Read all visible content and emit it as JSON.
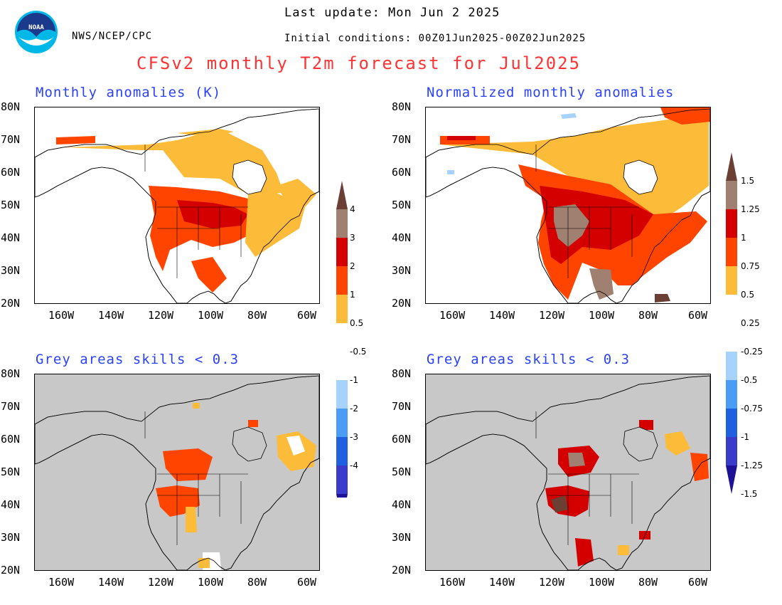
{
  "header": {
    "last_update": "Last update: Mon Jun 2 2025",
    "agency": "NWS/NCEP/CPC",
    "initial_conditions": "Initial conditions: 00Z01Jun2025-00Z02Jun2025",
    "main_title": "CFSv2 monthly T2m forecast for Jul2025",
    "logo_text": "NOAA"
  },
  "panels": {
    "top_left": {
      "title": "Monthly anomalies (K)"
    },
    "top_right": {
      "title": "Normalized monthly anomalies"
    },
    "bottom_left": {
      "title": "Grey areas skills < 0.3"
    },
    "bottom_right": {
      "title": "Grey areas skills < 0.3"
    }
  },
  "axes": {
    "lat_ticks": [
      "80N",
      "70N",
      "60N",
      "50N",
      "40N",
      "30N",
      "20N"
    ],
    "lon_ticks": [
      "160W",
      "140W",
      "120W",
      "100W",
      "80W",
      "60W"
    ]
  },
  "colorbars": {
    "anomaly_labels": [
      "4",
      "3",
      "2",
      "1",
      "0.5",
      "-0.5",
      "-1",
      "-2",
      "-3",
      "-4"
    ],
    "normalized_labels": [
      "1.5",
      "1.25",
      "1",
      "0.75",
      "0.5",
      "0.25",
      "-0.25",
      "-0.5",
      "-0.75",
      "-1",
      "-1.25",
      "-1.5"
    ],
    "colors": {
      "pos": [
        "#fdbb3a",
        "#ff4400",
        "#d40000",
        "#a08070",
        "#6b3f33"
      ],
      "neg": [
        "#a6d3fb",
        "#4a9cf4",
        "#1e60e0",
        "#3a3acb",
        "#1e1196"
      ],
      "grey": "#c8c8c8"
    }
  }
}
